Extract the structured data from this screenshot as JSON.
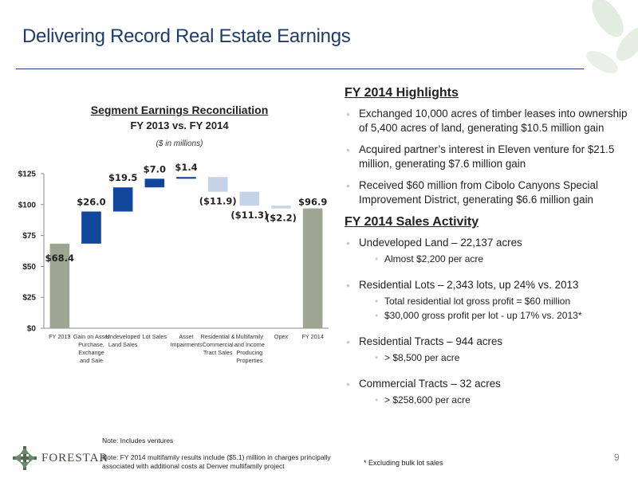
{
  "header": {
    "title": "Delivering Record Real Estate Earnings"
  },
  "chart_data": {
    "type": "waterfall",
    "title": "Segment Earnings Reconciliation",
    "subtitle": "FY 2013 vs. FY 2014",
    "unit_note": "($ in millions)",
    "categories": [
      "FY 2013",
      "Gain on Asset Purchase, Exchange and Sale",
      "Undeveloped Land Sales",
      "Lot Sales",
      "Asset Impairments",
      "Residential & Commercial Tract Sales",
      "Multifamily and Income Producing Properties",
      "Opex",
      "FY 2014"
    ],
    "category_lines": [
      [
        "FY 2013"
      ],
      [
        "Gain on Asset",
        "Purchase,",
        "Exchange",
        "and Sale"
      ],
      [
        "Undeveloped",
        "Land Sales"
      ],
      [
        "Lot Sales"
      ],
      [
        "Asset",
        "Impairments"
      ],
      [
        "Residential &",
        "Commercial",
        "Tract Sales"
      ],
      [
        "Multifamily",
        "and Income",
        "Producing",
        "Properties"
      ],
      [
        "Opex"
      ],
      [
        "FY 2014"
      ]
    ],
    "values": [
      68.4,
      26.0,
      19.5,
      7.0,
      1.4,
      -11.9,
      -11.3,
      -2.2,
      96.9
    ],
    "kinds": [
      "total",
      "increase",
      "increase",
      "increase",
      "increase",
      "decrease",
      "decrease",
      "decrease",
      "total"
    ],
    "value_labels": [
      "$68.4",
      "$26.0",
      "$19.5",
      "$7.0",
      "$1.4",
      "($11.9)",
      "($11.3)",
      "($2.2)",
      "$96.9"
    ],
    "ylim": [
      0,
      125
    ],
    "y_ticks": [
      0,
      25,
      50,
      75,
      100,
      125
    ],
    "y_tick_labels": [
      "$0",
      "$25",
      "$50",
      "$75",
      "$100",
      "$125"
    ],
    "colors": {
      "total": "#9ea593",
      "increase": "#10479a",
      "decrease": "#c4d3e6"
    },
    "grid": false
  },
  "highlights": {
    "heading": "FY 2014 Highlights",
    "items": [
      "Exchanged 10,000 acres of timber leases into ownership of 5,400 acres of land, generating $10.5 million gain",
      "Acquired partner’s interest in Eleven venture for $21.5 million, generating $7.6 million gain",
      "Received $60 million from Cibolo Canyons Special Improvement District, generating $6.6 million gain"
    ]
  },
  "sales": {
    "heading": "FY 2014 Sales Activity",
    "items": [
      {
        "text": "Undeveloped Land – 22,137 acres",
        "subs": [
          "Almost $2,200 per acre"
        ]
      },
      {
        "text": "Residential Lots – 2,343 lots, up 24% vs. 2013",
        "subs": [
          "Total residential lot gross profit = $60 million",
          "$30,000 gross profit per lot - up 17% vs. 2013*"
        ]
      },
      {
        "text": "Residential Tracts – 944 acres",
        "subs": [
          "> $8,500 per acre"
        ]
      },
      {
        "text": "Commercial Tracts – 32 acres",
        "subs": [
          "> $258,600 per acre"
        ]
      }
    ]
  },
  "notes": {
    "ventures": "Note: Includes ventures",
    "multifamily": "Note: FY 2014 multifamily results include ($5.1) million in charges principally associated with additional costs at Denver multifamily project",
    "footnote": "* Excluding bulk lot sales"
  },
  "footer": {
    "logo_text": "FORESTAR",
    "page_number": "9"
  }
}
